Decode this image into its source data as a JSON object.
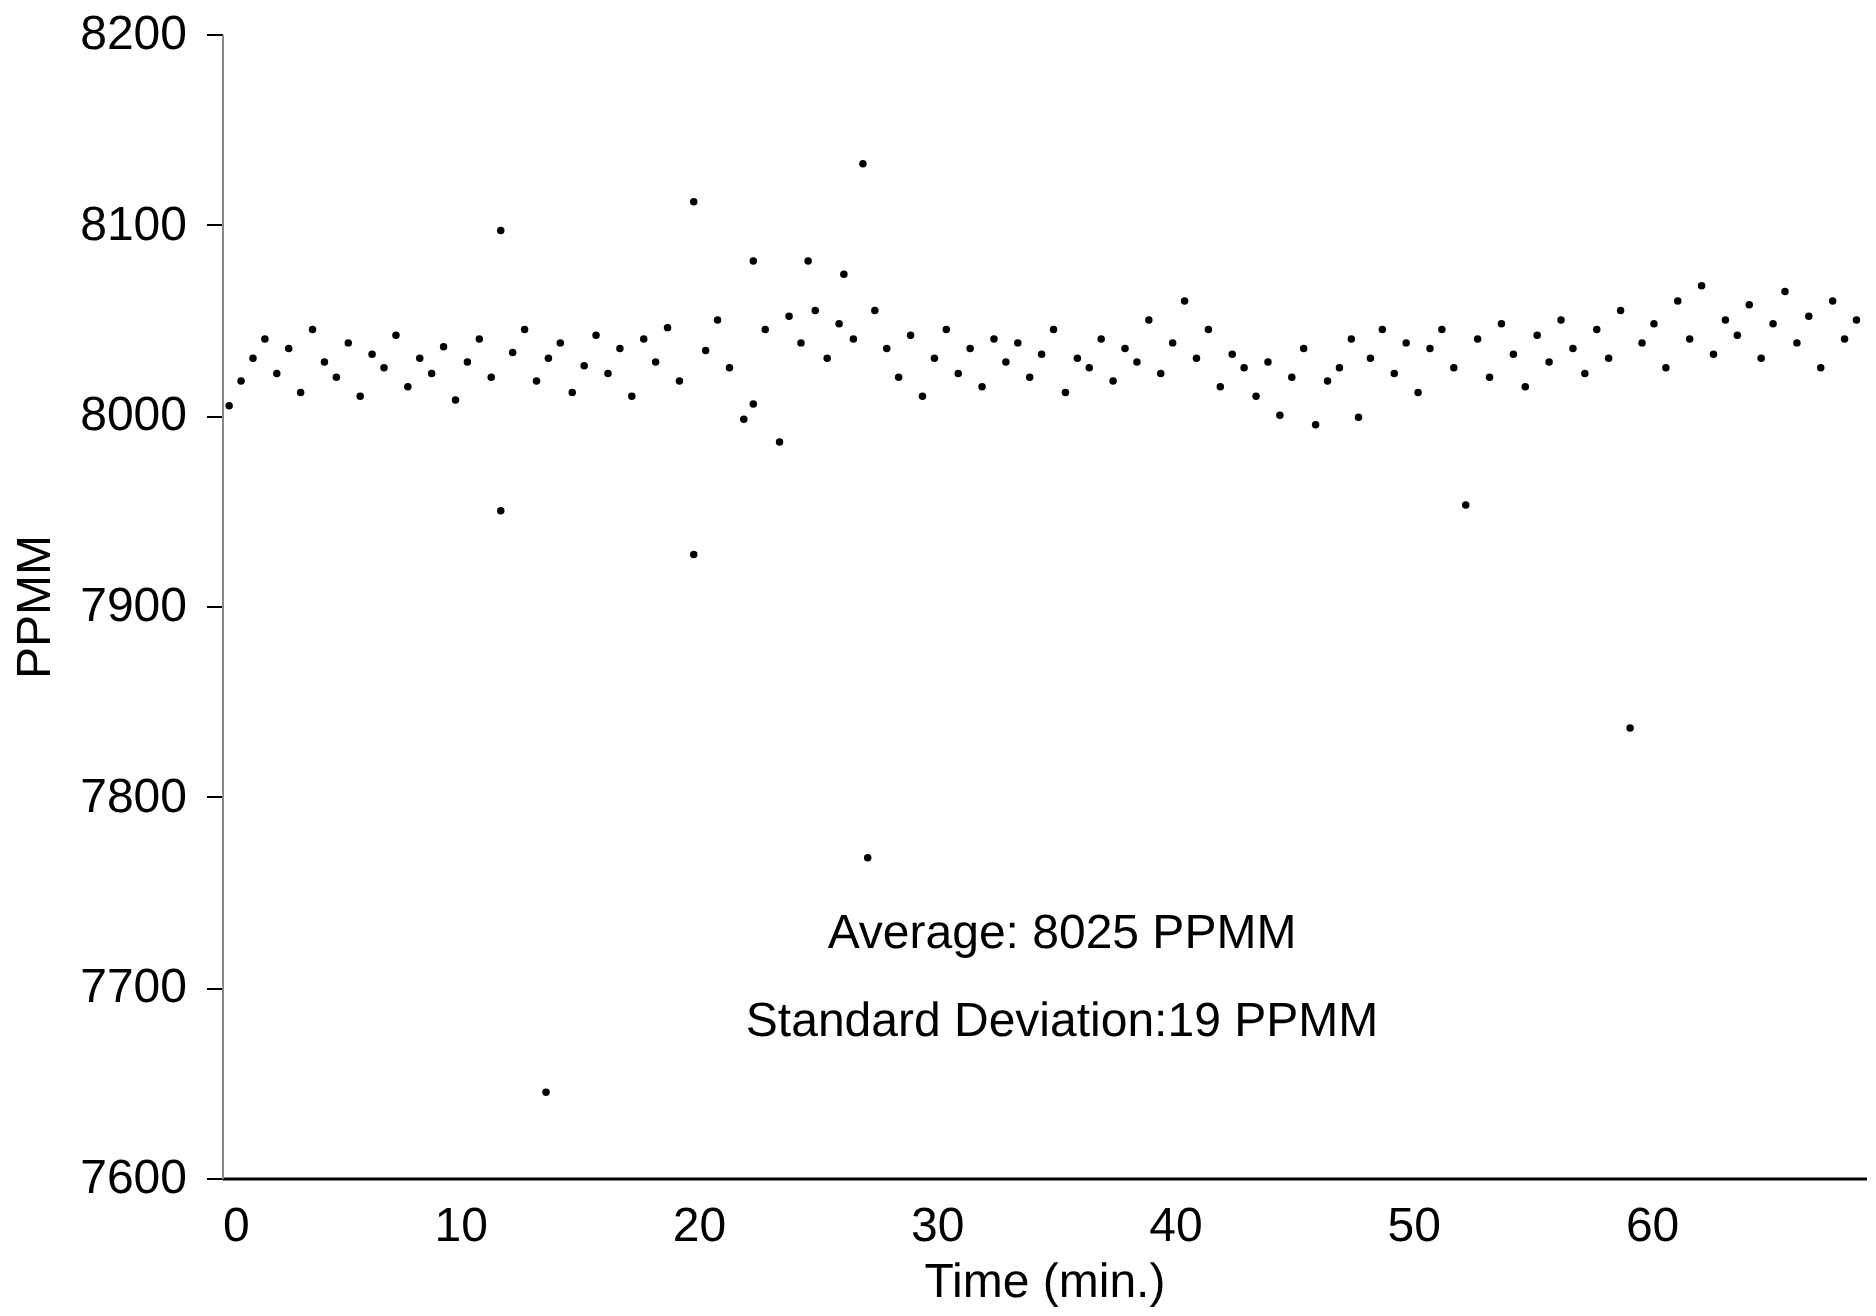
{
  "chart_data": {
    "type": "scatter",
    "xlabel": "Time (min.)",
    "ylabel": "PPMM",
    "x": [
      0.3,
      0.8,
      1.3,
      1.8,
      2.3,
      2.8,
      3.3,
      3.8,
      4.3,
      4.8,
      5.3,
      5.8,
      6.3,
      6.8,
      7.3,
      7.8,
      8.3,
      8.8,
      9.3,
      9.8,
      10.3,
      10.8,
      11.3,
      11.7,
      11.7,
      12.2,
      12.7,
      13.2,
      13.6,
      13.7,
      14.2,
      14.7,
      15.2,
      15.7,
      16.2,
      16.7,
      17.2,
      17.7,
      18.2,
      18.7,
      19.2,
      19.8,
      19.8,
      20.3,
      20.8,
      21.3,
      21.9,
      22.3,
      22.3,
      22.8,
      23.4,
      23.8,
      24.3,
      24.6,
      24.9,
      25.4,
      25.9,
      26.1,
      26.5,
      26.9,
      27.1,
      27.4,
      27.9,
      28.4,
      28.9,
      29.4,
      29.9,
      30.4,
      30.9,
      31.4,
      31.9,
      32.4,
      32.9,
      33.4,
      33.9,
      34.4,
      34.9,
      35.4,
      35.9,
      36.4,
      36.9,
      37.4,
      37.9,
      38.4,
      38.9,
      39.4,
      39.9,
      40.4,
      40.9,
      41.4,
      41.9,
      42.4,
      42.9,
      43.4,
      43.9,
      44.4,
      44.9,
      45.4,
      45.9,
      46.4,
      46.9,
      47.4,
      47.7,
      48.2,
      48.7,
      49.2,
      49.7,
      50.2,
      50.7,
      51.2,
      51.7,
      52.2,
      52.7,
      53.2,
      53.7,
      54.2,
      54.7,
      55.2,
      55.7,
      56.2,
      56.7,
      57.2,
      57.7,
      58.2,
      58.7,
      59.1,
      59.6,
      60.1,
      60.6,
      61.1,
      61.6,
      62.1,
      62.6,
      63.1,
      63.6,
      64.1,
      64.6,
      65.1,
      65.6,
      66.1,
      66.6,
      67.1,
      67.6,
      68.1,
      68.6
    ],
    "series": [
      {
        "color": "#000000",
        "values": [
          8005,
          8018,
          8030,
          8040,
          8022,
          8035,
          8012,
          8045,
          8028,
          8020,
          8038,
          8010,
          8032,
          8025,
          8042,
          8015,
          8030,
          8022,
          8036,
          8008,
          8028,
          8040,
          8020,
          8097,
          7950,
          8033,
          8045,
          8018,
          7645,
          8030,
          8038,
          8012,
          8026,
          8042,
          8022,
          8035,
          8010,
          8040,
          8028,
          8046,
          8018,
          8112,
          7927,
          8034,
          8050,
          8025,
          7998,
          8081,
          8006,
          8045,
          7986,
          8052,
          8038,
          8081,
          8055,
          8030,
          8048,
          8074,
          8040,
          8132,
          7768,
          8055,
          8035,
          8020,
          8042,
          8010,
          8030,
          8045,
          8022,
          8035,
          8015,
          8040,
          8028,
          8038,
          8020,
          8032,
          8045,
          8012,
          8030,
          8025,
          8040,
          8018,
          8035,
          8028,
          8050,
          8022,
          8038,
          8060,
          8030,
          8045,
          8015,
          8032,
          8025,
          8010,
          8028,
          8000,
          8020,
          8035,
          7995,
          8018,
          8025,
          8040,
          7999,
          8030,
          8045,
          8022,
          8038,
          8012,
          8035,
          8045,
          8025,
          7953,
          8040,
          8020,
          8048,
          8032,
          8015,
          8042,
          8028,
          8050,
          8035,
          8022,
          8045,
          8030,
          8055,
          7836,
          8038,
          8048,
          8025,
          8060,
          8040,
          8068,
          8032,
          8050,
          8042,
          8058,
          8030,
          8048,
          8065,
          8038,
          8052,
          8025,
          8060,
          8040,
          8050
        ]
      }
    ],
    "xlim": [
      0,
      69
    ],
    "xticks": [
      0,
      10,
      20,
      30,
      40,
      50,
      60
    ],
    "ylim": [
      7600,
      8200
    ],
    "yticks": [
      7600,
      7700,
      7800,
      7900,
      8000,
      8100,
      8200
    ],
    "marker": "circle",
    "grid": false,
    "legend": false,
    "annotations": [
      "Average: 8025 PPMM",
      "Standard Deviation:19 PPMM"
    ]
  }
}
